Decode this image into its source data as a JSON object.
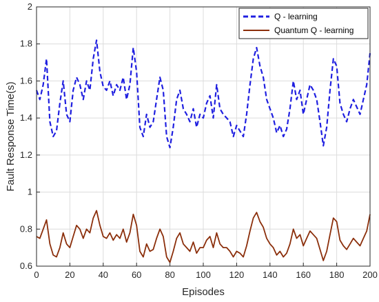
{
  "chart_data": {
    "type": "line",
    "title": "",
    "xlabel": "Episodes",
    "ylabel": "Fault Response Time(s)",
    "xlim": [
      0,
      200
    ],
    "ylim": [
      0.6,
      2
    ],
    "x_ticks": [
      "0",
      "20",
      "40",
      "60",
      "80",
      "100",
      "120",
      "140",
      "160",
      "180",
      "200"
    ],
    "y_ticks": [
      "0.6",
      "0.8",
      "1",
      "1.2",
      "1.4",
      "1.6",
      "1.8",
      "2"
    ],
    "grid": true,
    "legend_position": "top-right",
    "x": [
      0,
      2,
      4,
      6,
      8,
      10,
      12,
      14,
      16,
      18,
      20,
      22,
      24,
      26,
      28,
      30,
      32,
      34,
      36,
      38,
      40,
      42,
      44,
      46,
      48,
      50,
      52,
      54,
      56,
      58,
      60,
      62,
      64,
      66,
      68,
      70,
      72,
      74,
      76,
      78,
      80,
      82,
      84,
      86,
      88,
      90,
      92,
      94,
      96,
      98,
      100,
      102,
      104,
      106,
      108,
      110,
      112,
      114,
      116,
      118,
      120,
      122,
      124,
      126,
      128,
      130,
      132,
      134,
      136,
      138,
      140,
      142,
      144,
      146,
      148,
      150,
      152,
      154,
      156,
      158,
      160,
      162,
      164,
      166,
      168,
      170,
      172,
      174,
      176,
      178,
      180,
      182,
      184,
      186,
      188,
      190,
      192,
      194,
      196,
      198,
      200
    ],
    "series": [
      {
        "name": "Q - learning",
        "color": "#1f1fe0",
        "style": "dashed",
        "values": [
          1.55,
          1.5,
          1.58,
          1.72,
          1.38,
          1.3,
          1.33,
          1.48,
          1.6,
          1.42,
          1.38,
          1.55,
          1.62,
          1.58,
          1.5,
          1.6,
          1.55,
          1.72,
          1.82,
          1.65,
          1.57,
          1.55,
          1.6,
          1.52,
          1.58,
          1.55,
          1.62,
          1.5,
          1.58,
          1.78,
          1.65,
          1.35,
          1.3,
          1.42,
          1.35,
          1.38,
          1.5,
          1.62,
          1.55,
          1.3,
          1.24,
          1.35,
          1.5,
          1.55,
          1.45,
          1.42,
          1.38,
          1.45,
          1.35,
          1.42,
          1.4,
          1.48,
          1.52,
          1.4,
          1.58,
          1.45,
          1.42,
          1.4,
          1.38,
          1.3,
          1.36,
          1.33,
          1.3,
          1.42,
          1.58,
          1.72,
          1.78,
          1.68,
          1.62,
          1.5,
          1.45,
          1.4,
          1.32,
          1.36,
          1.3,
          1.34,
          1.45,
          1.6,
          1.5,
          1.55,
          1.42,
          1.5,
          1.58,
          1.55,
          1.5,
          1.38,
          1.25,
          1.35,
          1.55,
          1.72,
          1.68,
          1.48,
          1.42,
          1.38,
          1.45,
          1.5,
          1.46,
          1.42,
          1.5,
          1.58,
          1.75
        ]
      },
      {
        "name": "Quantum Q - learning",
        "color": "#8b2e0a",
        "style": "solid",
        "values": [
          0.76,
          0.75,
          0.8,
          0.85,
          0.72,
          0.66,
          0.65,
          0.7,
          0.78,
          0.72,
          0.7,
          0.76,
          0.82,
          0.8,
          0.75,
          0.8,
          0.78,
          0.86,
          0.9,
          0.82,
          0.76,
          0.75,
          0.78,
          0.74,
          0.77,
          0.75,
          0.8,
          0.73,
          0.78,
          0.88,
          0.82,
          0.68,
          0.65,
          0.72,
          0.68,
          0.69,
          0.75,
          0.8,
          0.76,
          0.65,
          0.62,
          0.68,
          0.75,
          0.78,
          0.72,
          0.7,
          0.68,
          0.73,
          0.67,
          0.7,
          0.7,
          0.74,
          0.76,
          0.7,
          0.78,
          0.72,
          0.7,
          0.7,
          0.68,
          0.65,
          0.68,
          0.67,
          0.65,
          0.71,
          0.79,
          0.86,
          0.89,
          0.84,
          0.81,
          0.75,
          0.72,
          0.7,
          0.66,
          0.68,
          0.65,
          0.67,
          0.72,
          0.8,
          0.75,
          0.77,
          0.71,
          0.75,
          0.79,
          0.77,
          0.75,
          0.69,
          0.63,
          0.68,
          0.77,
          0.86,
          0.84,
          0.74,
          0.71,
          0.69,
          0.72,
          0.75,
          0.73,
          0.71,
          0.75,
          0.79,
          0.88
        ]
      }
    ]
  }
}
